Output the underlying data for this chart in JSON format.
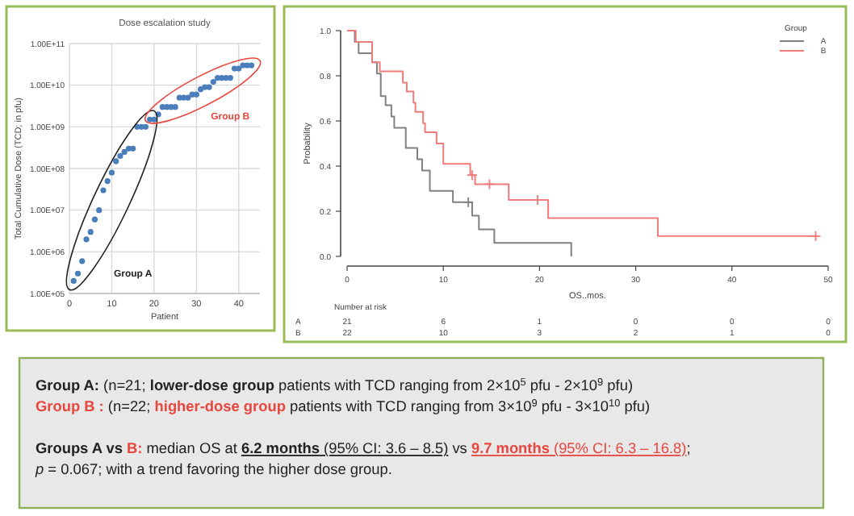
{
  "chart_data": [
    {
      "type": "scatter",
      "title": "Dose escalation study",
      "xlabel": "Patient",
      "ylabel": "Total Cumulative Dose (TCD; in pfu)",
      "log": "y",
      "grid": true,
      "marker": "circle",
      "xlim": [
        0,
        45
      ],
      "xticks": [
        0,
        10,
        20,
        30,
        40
      ],
      "ylim": [
        100000,
        100000000000
      ],
      "yticks": [
        {
          "value": 100000,
          "label": "1.00E+05"
        },
        {
          "value": 1000000,
          "label": "1.00E+06"
        },
        {
          "value": 10000000,
          "label": "1.00E+07"
        },
        {
          "value": 100000000,
          "label": "1.00E+08"
        },
        {
          "value": 1000000000,
          "label": "1.00E+09"
        },
        {
          "value": 10000000000,
          "label": "1.00E+10"
        },
        {
          "value": 100000000000,
          "label": "1.00E+11"
        }
      ],
      "x": [
        1,
        2,
        3,
        4,
        5,
        6,
        7,
        8,
        9,
        10,
        11,
        12,
        13,
        14,
        15,
        16,
        17,
        18,
        19,
        20,
        21,
        22,
        23,
        24,
        25,
        26,
        27,
        28,
        29,
        30,
        31,
        32,
        33,
        34,
        35,
        36,
        37,
        38,
        39,
        40,
        41,
        42,
        43
      ],
      "series": [
        {
          "color": "#4a7ebb",
          "values": [
            200000,
            300000,
            600000,
            2000000,
            3000000,
            6000000,
            10000000,
            30000000,
            50000000,
            80000000,
            150000000,
            200000000,
            250000000,
            300000000,
            300000000,
            1000000000,
            1000000000,
            1000000000,
            1500000000,
            1500000000,
            2000000000,
            3000000000,
            3000000000,
            3000000000,
            3000000000,
            5000000000,
            5000000000,
            5000000000,
            6000000000,
            6000000000,
            8000000000,
            9000000000,
            9000000000,
            12000000000,
            15000000000,
            15000000000,
            15000000000,
            15000000000,
            25000000000,
            25000000000,
            30000000000,
            30000000000,
            30000000000
          ]
        }
      ],
      "annotations": [
        "Group A",
        "Group B"
      ]
    },
    {
      "type": "step",
      "xlabel": "OS..mos.",
      "ylabel": "Probability",
      "legend_title": "Group",
      "legend": "top right",
      "marker": "none",
      "xlim": [
        0,
        50
      ],
      "xticks": [
        0,
        10,
        20,
        30,
        40,
        50
      ],
      "ylim": [
        0,
        1
      ],
      "yticks": [
        {
          "value": 0,
          "label": "0.0"
        },
        {
          "value": 0.2,
          "label": "0.2"
        },
        {
          "value": 0.4,
          "label": "0.4"
        },
        {
          "value": 0.6,
          "label": "0.6"
        },
        {
          "value": 0.8,
          "label": "0.8"
        },
        {
          "value": 1,
          "label": "1.0"
        }
      ],
      "series": [
        {
          "name": "A",
          "color": "#808080",
          "x": [
            0,
            0.8,
            1.2,
            2.6,
            3.1,
            3.5,
            4.0,
            4.6,
            4.9,
            6.1,
            7.3,
            7.8,
            8.6,
            11.0,
            13.0,
            13.7,
            15.3,
            23.3
          ],
          "values": [
            1,
            0.95,
            0.9,
            0.86,
            0.81,
            0.71,
            0.67,
            0.62,
            0.57,
            0.48,
            0.43,
            0.38,
            0.29,
            0.24,
            0.18,
            0.12,
            0.06,
            0
          ]
        },
        {
          "name": "B",
          "color": "#ef7b7b",
          "x": [
            0,
            0.9,
            2.6,
            3.4,
            5.8,
            6.2,
            6.9,
            7.1,
            7.9,
            8.1,
            9.3,
            10.0,
            12.8,
            13.3,
            16.8,
            20.9,
            32.3,
            48.9
          ],
          "values": [
            1,
            0.95,
            0.86,
            0.82,
            0.77,
            0.73,
            0.68,
            0.64,
            0.59,
            0.55,
            0.5,
            0.41,
            0.36,
            0.32,
            0.25,
            0.17,
            0.09,
            0.09
          ]
        },
        {
          "type": "scatter",
          "marker": "cross",
          "color": "#808080",
          "x": [
            12.6
          ],
          "values": [
            0.24
          ]
        },
        {
          "type": "scatter",
          "marker": "cross",
          "color": "#ef7b7b",
          "x": [
            13.0,
            14.8,
            19.8,
            48.7
          ],
          "values": [
            0.36,
            0.32,
            0.25,
            0.09
          ]
        }
      ],
      "annotations": [
        "Number at risk",
        "A",
        "21",
        "6",
        "1",
        "0",
        "0",
        "0",
        "B",
        "22",
        "10",
        "3",
        "2",
        "1",
        "0"
      ]
    },
    {
      "type": "other",
      "annotations": [
        "Group A:",
        " (n=21; ",
        "lower-dose group",
        " patients with TCD ranging from 2×10$^{5}$ pfu - 2×10$^{9}$ pfu)",
        "Group B :",
        " (n=22; ",
        "higher-dose group",
        " patients with TCD ranging from 3×10$^{9}$ pfu - 3×10$^{10}$ pfu)",
        "Groups A vs ",
        "B:",
        " median OS at ",
        "6.2 months",
        " (95% CI: 3.6 – 8.5)",
        " vs ",
        "9.7 months",
        " (95% CI: 6.3 – 16.8)",
        ";",
        "p",
        " = 0.067; with a trend favoring the higher dose group."
      ]
    }
  ]
}
